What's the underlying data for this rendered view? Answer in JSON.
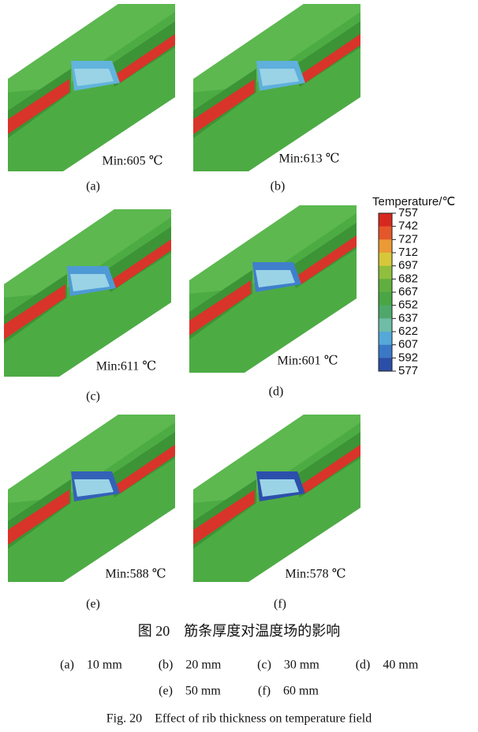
{
  "panels": [
    {
      "label": "(a)",
      "min": "Min:605 ℃",
      "junction_color": "#62b4dc"
    },
    {
      "label": "(b)",
      "min": "Min:613 ℃",
      "junction_color": "#5fb0dc"
    },
    {
      "label": "(c)",
      "min": "Min:611 ℃",
      "junction_color": "#4e9ad6"
    },
    {
      "label": "(d)",
      "min": "Min:601 ℃",
      "junction_color": "#3f7fcb"
    },
    {
      "label": "(e)",
      "min": "Min:588 ℃",
      "junction_color": "#3461b8"
    },
    {
      "label": "(f)",
      "min": "Min:578 ℃",
      "junction_color": "#2c4fac"
    }
  ],
  "colorbar": {
    "title": "Temperature/℃",
    "ticks": [
      757,
      742,
      727,
      712,
      697,
      682,
      667,
      652,
      637,
      622,
      607,
      592,
      577
    ],
    "colors": [
      "#d7281f",
      "#e4572a",
      "#eb9a35",
      "#d6c83a",
      "#8fbf3c",
      "#5fae3f",
      "#4aa545",
      "#4ea86a",
      "#6fbda6",
      "#55a9d8",
      "#3a78c6",
      "#2b4ea6"
    ]
  },
  "caption": {
    "zh": "图 20　筋条厚度对温度场的影响",
    "rows": [
      [
        "(a)　10 mm",
        "(b)　20 mm",
        "(c)　30 mm",
        "(d)　40 mm"
      ],
      [
        "(e)　50 mm",
        "(f)　60 mm"
      ]
    ],
    "en": "Fig. 20　Effect of rib thickness on temperature field"
  }
}
